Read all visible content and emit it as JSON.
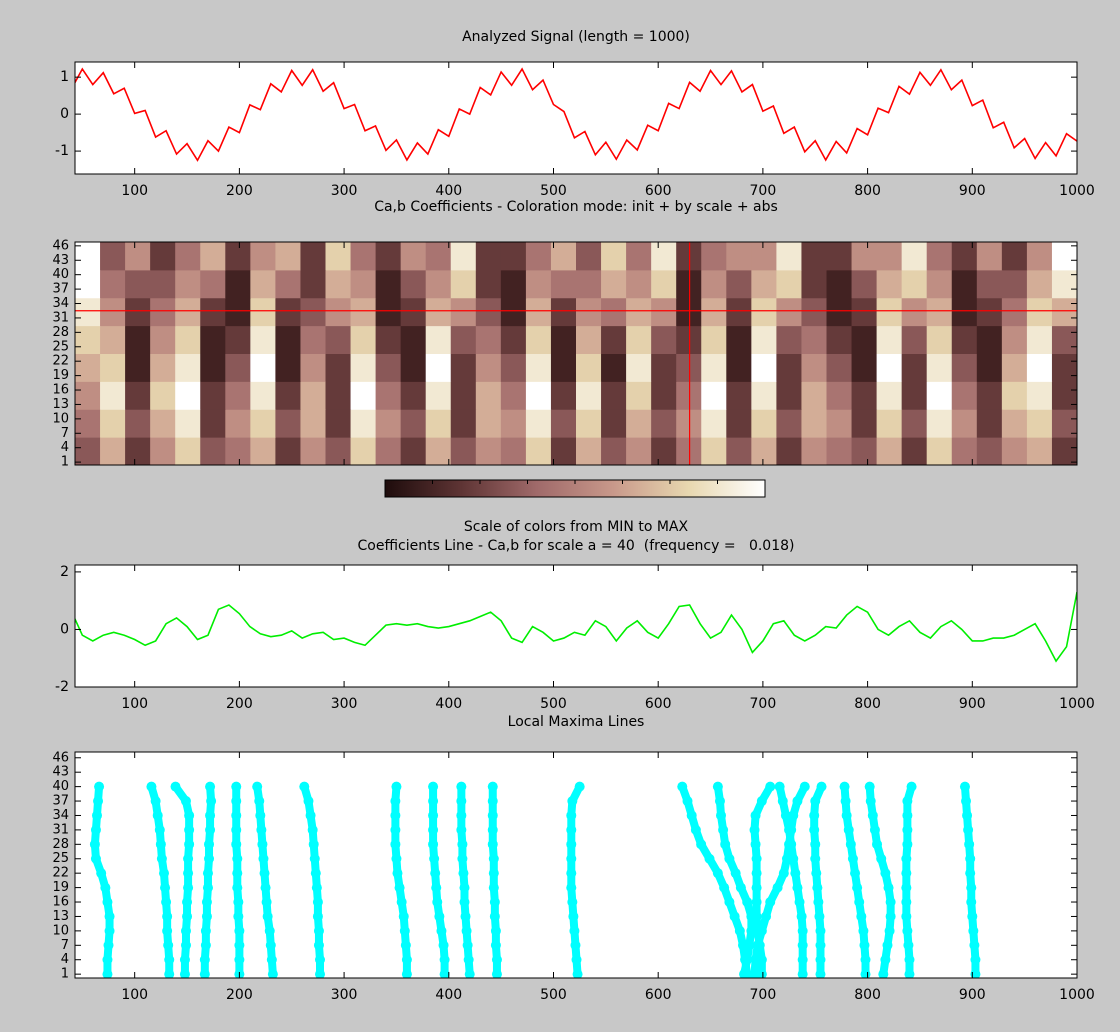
{
  "chart_data": [
    {
      "type": "line",
      "title": "Analyzed Signal (length = 1000)",
      "x": [
        0,
        10,
        20,
        30,
        40,
        50,
        60,
        70,
        80,
        90,
        100,
        110,
        120,
        130,
        140,
        150,
        160,
        170,
        180,
        190,
        200,
        210,
        220,
        230,
        240,
        250,
        260,
        270,
        280,
        290,
        300,
        310,
        320,
        330,
        340,
        350,
        360,
        370,
        380,
        390,
        400,
        410,
        420,
        430,
        440,
        450,
        460,
        470,
        480,
        490,
        500,
        510,
        520,
        530,
        540,
        550,
        560,
        570,
        580,
        590,
        600,
        610,
        620,
        630,
        640,
        650,
        660,
        670,
        680,
        690,
        700,
        710,
        720,
        730,
        740,
        750,
        760,
        770,
        780,
        790,
        800,
        810,
        820,
        830,
        840,
        850,
        860,
        870,
        880,
        890,
        900,
        910,
        920,
        930,
        940,
        950,
        960,
        970,
        980,
        990,
        1000
      ],
      "values": [
        -0.3,
        0.4,
        0.25,
        0.95,
        0.7,
        1.22,
        0.8,
        1.12,
        0.55,
        0.7,
        0.02,
        0.1,
        -0.62,
        -0.45,
        -1.08,
        -0.8,
        -1.25,
        -0.72,
        -1.0,
        -0.35,
        -0.5,
        0.25,
        0.12,
        0.82,
        0.6,
        1.18,
        0.78,
        1.2,
        0.62,
        0.85,
        0.15,
        0.26,
        -0.45,
        -0.32,
        -0.98,
        -0.7,
        -1.24,
        -0.78,
        -1.08,
        -0.42,
        -0.6,
        0.14,
        0.0,
        0.72,
        0.52,
        1.14,
        0.78,
        1.22,
        0.66,
        0.92,
        0.26,
        0.07,
        -0.64,
        -0.47,
        -1.1,
        -0.76,
        -1.22,
        -0.7,
        -0.97,
        -0.3,
        -0.45,
        0.29,
        0.15,
        0.86,
        0.62,
        1.18,
        0.8,
        1.17,
        0.6,
        0.8,
        0.08,
        0.22,
        -0.52,
        -0.35,
        -1.02,
        -0.72,
        -1.24,
        -0.74,
        -1.05,
        -0.39,
        -0.56,
        0.16,
        0.04,
        0.75,
        0.54,
        1.13,
        0.78,
        1.2,
        0.66,
        0.92,
        0.23,
        0.38,
        -0.37,
        -0.22,
        -0.91,
        -0.66,
        -1.2,
        -0.77,
        -1.13,
        -0.53,
        -0.73
      ],
      "color": "#ff0000",
      "xlim": [
        43,
        1000
      ],
      "ylim": [
        -1.62,
        1.41
      ],
      "xticks": [
        100,
        200,
        300,
        400,
        500,
        600,
        700,
        800,
        900,
        1000
      ],
      "yticks": [
        -1,
        0,
        1
      ]
    },
    {
      "type": "heatmap",
      "title": "Ca,b Coefficients - Coloration mode: init + by scale + abs",
      "z": [
        [
          3,
          6,
          2,
          5,
          7,
          3,
          4,
          6,
          2,
          5,
          3,
          7,
          4,
          2,
          6,
          3,
          5,
          4,
          7,
          2,
          6,
          3,
          5,
          2,
          4,
          7,
          3,
          6,
          2,
          5,
          4,
          3,
          6,
          2,
          7,
          4,
          3,
          5,
          6,
          2
        ],
        [
          4,
          7,
          3,
          6,
          8,
          2,
          5,
          7,
          3,
          6,
          2,
          8,
          5,
          3,
          7,
          2,
          6,
          5,
          8,
          3,
          7,
          2,
          6,
          3,
          5,
          8,
          2,
          7,
          3,
          6,
          5,
          2,
          7,
          3,
          8,
          5,
          2,
          6,
          7,
          3
        ],
        [
          5,
          8,
          2,
          7,
          9,
          2,
          4,
          8,
          2,
          6,
          2,
          9,
          4,
          2,
          8,
          2,
          6,
          4,
          9,
          2,
          8,
          2,
          7,
          2,
          4,
          9,
          2,
          8,
          2,
          6,
          4,
          2,
          8,
          2,
          9,
          4,
          2,
          7,
          8,
          2
        ],
        [
          6,
          7,
          1,
          6,
          8,
          1,
          3,
          9,
          1,
          5,
          2,
          8,
          3,
          1,
          9,
          2,
          5,
          3,
          8,
          1,
          7,
          1,
          8,
          2,
          3,
          8,
          1,
          9,
          2,
          5,
          3,
          1,
          9,
          2,
          8,
          3,
          1,
          6,
          9,
          2
        ],
        [
          7,
          6,
          1,
          5,
          7,
          1,
          2,
          8,
          1,
          4,
          3,
          7,
          2,
          1,
          8,
          3,
          4,
          2,
          7,
          1,
          6,
          2,
          7,
          3,
          2,
          7,
          1,
          8,
          3,
          4,
          2,
          1,
          8,
          3,
          7,
          2,
          1,
          5,
          8,
          3
        ],
        [
          8,
          5,
          2,
          4,
          6,
          2,
          1,
          7,
          2,
          3,
          5,
          6,
          1,
          2,
          6,
          5,
          3,
          1,
          6,
          2,
          5,
          4,
          6,
          5,
          1,
          6,
          2,
          7,
          5,
          3,
          1,
          2,
          7,
          5,
          6,
          1,
          2,
          4,
          7,
          6
        ],
        [
          9,
          4,
          3,
          3,
          5,
          4,
          1,
          6,
          4,
          2,
          6,
          5,
          1,
          3,
          5,
          7,
          2,
          1,
          5,
          4,
          4,
          6,
          5,
          7,
          1,
          5,
          3,
          6,
          7,
          2,
          1,
          3,
          6,
          7,
          5,
          1,
          3,
          3,
          6,
          8
        ],
        [
          9,
          3,
          5,
          2,
          4,
          6,
          2,
          5,
          6,
          2,
          7,
          4,
          2,
          5,
          4,
          8,
          2,
          2,
          4,
          6,
          3,
          7,
          4,
          8,
          2,
          4,
          5,
          5,
          8,
          2,
          2,
          5,
          5,
          8,
          4,
          2,
          5,
          2,
          5,
          9
        ]
      ],
      "clim": [
        0,
        9
      ],
      "colormap": [
        "#1e0c0c",
        "#5e3434",
        "#a06a6a",
        "#c8988a",
        "#e8d8b0",
        "#ffffff"
      ],
      "crosshair": {
        "x": 630,
        "y": 32.5,
        "color": "#ff0000"
      },
      "colorbar_label": "Scale of colors from MIN to MAX",
      "xlim": [
        43,
        1000
      ],
      "ylim": [
        0.4,
        46.8
      ],
      "xticks": [
        100,
        200,
        300,
        400,
        500,
        600,
        700,
        800,
        900,
        1000
      ],
      "yticks": [
        1,
        4,
        7,
        10,
        13,
        16,
        19,
        22,
        25,
        28,
        31,
        34,
        37,
        40,
        43,
        46
      ]
    },
    {
      "type": "line",
      "title": "Coefficients Line - Ca,b for scale a = 40  (frequency =   0.018)",
      "x": [
        0,
        10,
        20,
        30,
        40,
        50,
        60,
        70,
        80,
        90,
        100,
        110,
        120,
        130,
        140,
        150,
        160,
        170,
        180,
        190,
        200,
        210,
        220,
        230,
        240,
        250,
        260,
        270,
        280,
        290,
        300,
        310,
        320,
        330,
        340,
        350,
        360,
        370,
        380,
        390,
        400,
        410,
        420,
        430,
        440,
        450,
        460,
        470,
        480,
        490,
        500,
        510,
        520,
        530,
        540,
        550,
        560,
        570,
        580,
        590,
        600,
        610,
        620,
        630,
        640,
        650,
        660,
        670,
        680,
        690,
        700,
        710,
        720,
        730,
        740,
        750,
        760,
        770,
        780,
        790,
        800,
        810,
        820,
        830,
        840,
        850,
        860,
        870,
        880,
        890,
        900,
        910,
        920,
        930,
        940,
        950,
        960,
        970,
        980,
        990,
        1000
      ],
      "values": [
        -0.5,
        0.4,
        1.05,
        1.1,
        0.6,
        -0.2,
        -0.4,
        -0.2,
        -0.1,
        -0.2,
        -0.35,
        -0.55,
        -0.4,
        0.2,
        0.4,
        0.1,
        -0.35,
        -0.2,
        0.7,
        0.85,
        0.55,
        0.1,
        -0.15,
        -0.25,
        -0.2,
        -0.05,
        -0.3,
        -0.15,
        -0.1,
        -0.35,
        -0.3,
        -0.45,
        -0.55,
        -0.2,
        0.15,
        0.2,
        0.15,
        0.2,
        0.1,
        0.05,
        0.1,
        0.2,
        0.3,
        0.45,
        0.6,
        0.3,
        -0.3,
        -0.45,
        0.1,
        -0.1,
        -0.4,
        -0.3,
        -0.1,
        -0.2,
        0.3,
        0.1,
        -0.4,
        0.05,
        0.3,
        -0.1,
        -0.3,
        0.2,
        0.8,
        0.85,
        0.2,
        -0.3,
        -0.1,
        0.5,
        0.0,
        -0.8,
        -0.4,
        0.2,
        0.3,
        -0.2,
        -0.4,
        -0.2,
        0.1,
        0.05,
        0.5,
        0.8,
        0.6,
        0.0,
        -0.2,
        0.1,
        0.3,
        -0.1,
        -0.3,
        0.1,
        0.3,
        0.0,
        -0.4,
        -0.4,
        -0.3,
        -0.3,
        -0.2,
        0.0,
        0.2,
        -0.4,
        -1.1,
        -0.6,
        1.3
      ],
      "color": "#00ee00",
      "xlim": [
        43,
        1000
      ],
      "ylim": [
        -2,
        2.24
      ],
      "xticks": [
        100,
        200,
        300,
        400,
        500,
        600,
        700,
        800,
        900,
        1000
      ],
      "yticks": [
        -2,
        0,
        2
      ]
    },
    {
      "type": "scatter",
      "title": "Local Maxima Lines",
      "scales": [
        1,
        4,
        7,
        10,
        13,
        16,
        19,
        22,
        25,
        28,
        31,
        34,
        37,
        40
      ],
      "lines": [
        [
          74,
          74,
          75,
          76,
          76,
          74,
          72,
          68,
          63,
          62,
          63,
          64,
          65,
          66
        ],
        [
          133,
          133,
          132,
          131,
          131,
          130,
          129,
          128,
          126,
          125,
          124,
          122,
          120,
          116
        ],
        [
          148,
          148,
          149,
          149,
          150,
          150,
          151,
          151,
          151,
          152,
          152,
          152,
          149,
          139
        ],
        [
          167,
          167,
          168,
          168,
          169,
          169,
          170,
          170,
          171,
          171,
          172,
          172,
          173,
          172
        ],
        [
          200,
          200,
          200,
          200,
          199,
          199,
          198,
          198,
          198,
          197,
          197,
          197,
          197,
          197
        ],
        [
          232,
          231,
          230,
          229,
          227,
          226,
          225,
          224,
          223,
          222,
          221,
          220,
          219,
          217
        ],
        [
          277,
          277,
          276,
          276,
          275,
          275,
          274,
          273,
          272,
          271,
          270,
          268,
          266,
          262
        ],
        [
          360,
          360,
          359,
          358,
          357,
          355,
          353,
          351,
          350,
          349,
          349,
          349,
          349,
          350
        ],
        [
          396,
          396,
          395,
          393,
          391,
          389,
          388,
          387,
          386,
          385,
          385,
          385,
          385,
          385
        ],
        [
          420,
          419,
          418,
          417,
          416,
          415,
          415,
          414,
          413,
          413,
          412,
          412,
          412,
          412
        ],
        [
          446,
          446,
          445,
          445,
          444,
          444,
          443,
          443,
          443,
          442,
          442,
          442,
          442,
          442
        ],
        [
          523,
          522,
          521,
          520,
          519,
          518,
          517,
          517,
          517,
          517,
          517,
          517,
          518,
          525
        ],
        [
          685,
          683,
          681,
          678,
          673,
          668,
          663,
          657,
          649,
          641,
          636,
          632,
          628,
          623
        ],
        [
          682,
          685,
          687,
          689,
          689,
          685,
          679,
          674,
          668,
          664,
          662,
          660,
          659,
          657
        ],
        [
          699,
          699,
          697,
          695,
          694,
          694,
          694,
          694,
          694,
          693,
          692,
          693,
          699,
          707
        ],
        [
          692,
          693,
          695,
          699,
          703,
          707,
          714,
          720,
          723,
          725,
          727,
          729,
          733,
          740
        ],
        [
          738,
          738,
          738,
          738,
          737,
          735,
          733,
          731,
          729,
          727,
          725,
          722,
          719,
          716
        ],
        [
          755,
          755,
          755,
          755,
          754,
          753,
          752,
          751,
          750,
          750,
          749,
          749,
          750,
          756
        ],
        [
          798,
          798,
          797,
          796,
          794,
          792,
          790,
          788,
          786,
          784,
          782,
          780,
          779,
          778
        ],
        [
          815,
          817,
          819,
          821,
          822,
          822,
          820,
          817,
          813,
          809,
          807,
          805,
          803,
          802
        ],
        [
          840,
          840,
          839,
          838,
          837,
          837,
          837,
          837,
          837,
          838,
          838,
          838,
          838,
          842
        ],
        [
          903,
          903,
          902,
          901,
          900,
          899,
          899,
          898,
          898,
          897,
          896,
          895,
          894,
          893
        ]
      ],
      "color": "#00ffff",
      "xlim": [
        43,
        1000
      ],
      "ylim": [
        0.2,
        47.2
      ],
      "xticks": [
        100,
        200,
        300,
        400,
        500,
        600,
        700,
        800,
        900,
        1000
      ],
      "yticks": [
        1,
        4,
        7,
        10,
        13,
        16,
        19,
        22,
        25,
        28,
        31,
        34,
        37,
        40,
        43,
        46
      ]
    }
  ]
}
